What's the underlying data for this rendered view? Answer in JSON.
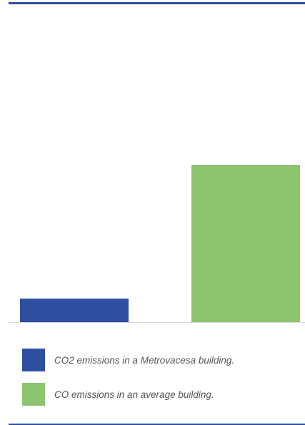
{
  "chart_data": {
    "type": "bar",
    "title": "",
    "xlabel": "",
    "ylabel": "",
    "categories": [
      "CO2  emissions in a Metrovacesa building.",
      "CO emissions in an average building."
    ],
    "values": [
      15,
      100
    ],
    "ylim": [
      0,
      100
    ],
    "grid": false,
    "axes_visible": false,
    "legend_placement": "bottom",
    "colors": [
      "#2e4fa0",
      "#8dc46f"
    ]
  },
  "colors": {
    "rule": "#2e4fa0",
    "baseline": "#d9d9d9"
  }
}
